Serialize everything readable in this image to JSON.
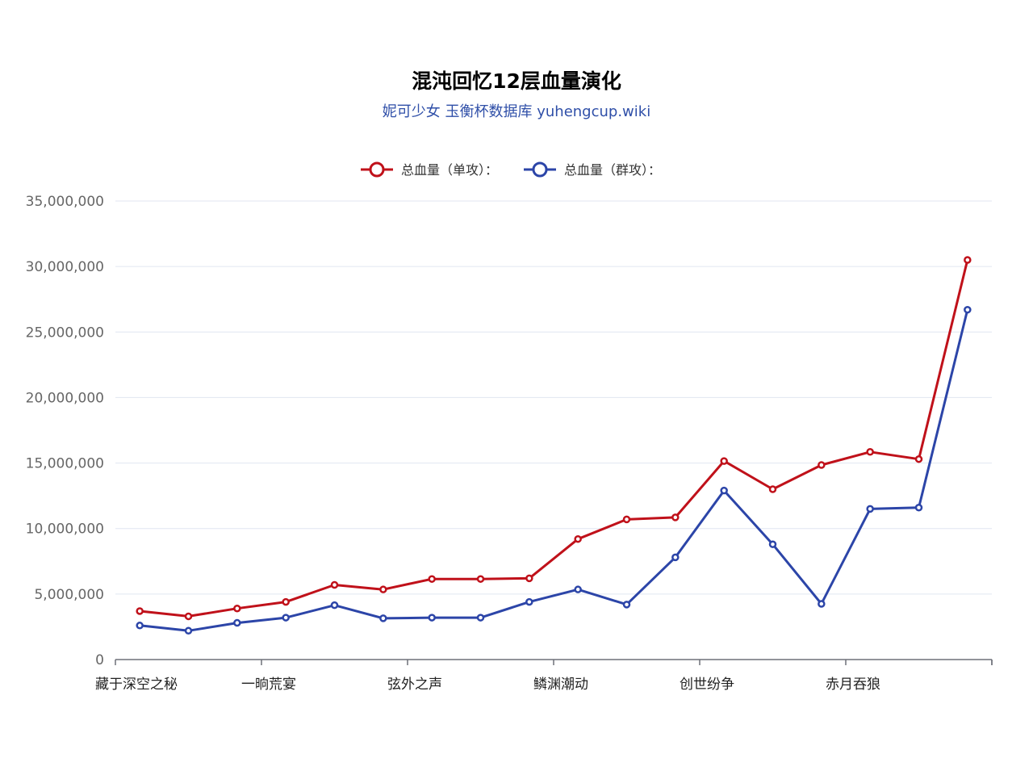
{
  "chart_data": {
    "type": "line",
    "title": "混沌回忆12层血量演化",
    "subtitle": "妮可少女 玉衡杯数据库 yuhengcup.wiki",
    "subtitle_color": "#2f4fa8",
    "x": [
      "藏于深空之秘",
      "",
      "",
      "一晌荒宴",
      "",
      "",
      "弦外之声",
      "",
      "",
      "鳞渊潮动",
      "",
      "",
      "创世纷争",
      "",
      "",
      "赤月吞狼",
      "",
      ""
    ],
    "x_tick_labels": [
      "藏于深空之秘",
      "一晌荒宴",
      "弦外之声",
      "鳞渊潮动",
      "创世纷争",
      "赤月吞狼"
    ],
    "y_ticks": [
      "0",
      "5,000,000",
      "10,000,000",
      "15,000,000",
      "20,000,000",
      "25,000,000",
      "30,000,000",
      "35,000,000"
    ],
    "ylim": [
      0,
      35000000
    ],
    "grid": true,
    "legend_position": "top-center",
    "series": [
      {
        "name": "总血量（单攻）：",
        "color": "#c0111a",
        "values": [
          3700000,
          3300000,
          3900000,
          4400000,
          5700000,
          5350000,
          6150000,
          6150000,
          6200000,
          9200000,
          10700000,
          10850000,
          15150000,
          13000000,
          14850000,
          15850000,
          15300000,
          30500000
        ]
      },
      {
        "name": "总血量（群攻）：",
        "color": "#2c45a8",
        "values": [
          2600000,
          2200000,
          2800000,
          3200000,
          4150000,
          3150000,
          3200000,
          3200000,
          4400000,
          5350000,
          4200000,
          7800000,
          12900000,
          8800000,
          4250000,
          11500000,
          11600000,
          26700000
        ]
      }
    ]
  }
}
